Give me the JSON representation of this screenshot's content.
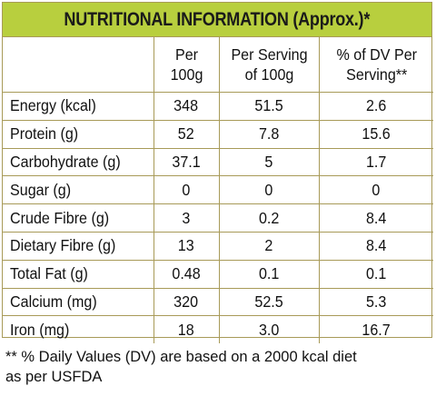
{
  "title": "NUTRITIONAL INFORMATION (Approx.)*",
  "columns": {
    "per100g": {
      "line1": "Per",
      "line2": "100g"
    },
    "per_serving": {
      "line1": "Per Serving",
      "line2": "of 100g"
    },
    "dv": {
      "line1": "% of DV Per",
      "line2": "Serving**"
    }
  },
  "rows": [
    {
      "label": "Energy (kcal)",
      "per100g": "348",
      "per_serving": "51.5",
      "dv": "2.6"
    },
    {
      "label": "Protein (g)",
      "per100g": "52",
      "per_serving": "7.8",
      "dv": "15.6"
    },
    {
      "label": "Carbohydrate (g)",
      "per100g": "37.1",
      "per_serving": "5",
      "dv": "1.7"
    },
    {
      "label": "Sugar (g)",
      "per100g": "0",
      "per_serving": "0",
      "dv": "0"
    },
    {
      "label": "Crude Fibre (g)",
      "per100g": "3",
      "per_serving": "0.2",
      "dv": "8.4"
    },
    {
      "label": "Dietary Fibre (g)",
      "per100g": "13",
      "per_serving": "2",
      "dv": "8.4"
    },
    {
      "label": "Total Fat (g)",
      "per100g": "0.48",
      "per_serving": "0.1",
      "dv": "0.1"
    },
    {
      "label": "Calcium (mg)",
      "per100g": "320",
      "per_serving": "52.5",
      "dv": "5.3"
    },
    {
      "label": "Iron (mg)",
      "per100g": "18",
      "per_serving": "3.0",
      "dv": "16.7"
    }
  ],
  "footnote": {
    "line1": "** % Daily Values (DV) are based on a 2000 kcal diet",
    "line2": "as per USFDA"
  },
  "colors": {
    "title_bg": "#b8cf3e",
    "border": "#a89a58",
    "text": "#111111"
  }
}
